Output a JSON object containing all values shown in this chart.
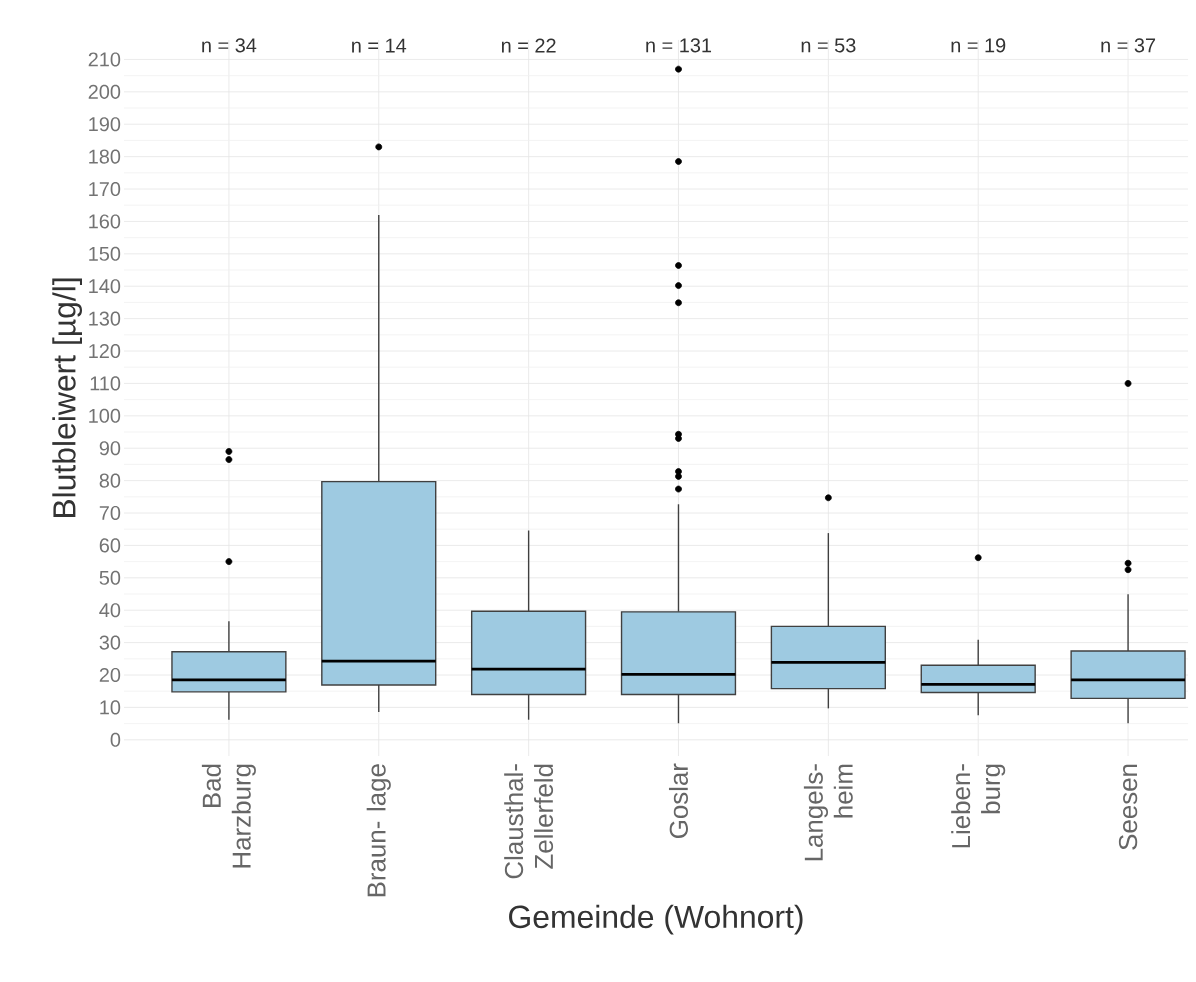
{
  "chart_data": {
    "type": "box",
    "xlabel": "Gemeinde (Wohnort)",
    "ylabel": "Blutbleiwert [µg/l]",
    "categories": [
      "Bad Harzburg",
      "Braun- lage",
      "Clausthal- Zellerfeld",
      "Goslar",
      "Langels- heim",
      "Lieben- burg",
      "Seesen"
    ],
    "color": "#9ecae1",
    "boxes": [
      {
        "low": 6.2,
        "q1": 14.8,
        "median": 18.5,
        "q3": 27.2,
        "high": 36.6,
        "outliers": [
          89,
          86.5,
          55
        ]
      },
      {
        "low": 8.6,
        "q1": 16.9,
        "median": 24.3,
        "q3": 79.7,
        "high": 162,
        "outliers": [
          183
        ]
      },
      {
        "low": 6.2,
        "q1": 14,
        "median": 21.8,
        "q3": 39.7,
        "high": 64.6
      },
      {
        "low": 5.1,
        "q1": 14,
        "median": 20.2,
        "q3": 39.5,
        "high": 72.7,
        "outliers": [
          207,
          178.5,
          146.4,
          140.2,
          134.9,
          94.3,
          93,
          82.8,
          81.3,
          77.4
        ]
      },
      {
        "low": 9.7,
        "q1": 15.8,
        "median": 23.9,
        "q3": 35,
        "high": 63.8,
        "outliers": [
          74.7
        ]
      },
      {
        "low": 7.6,
        "q1": 14.6,
        "median": 17.1,
        "q3": 23,
        "high": 30.9,
        "outliers": [
          56.2
        ]
      },
      {
        "low": 5.1,
        "q1": 12.8,
        "median": 18.5,
        "q3": 27.4,
        "high": 44.9,
        "outliers": [
          110,
          54.5,
          52.5
        ]
      }
    ],
    "annotations": [
      "n = 34",
      "n = 14",
      "n = 22",
      "n = 131",
      "n = 53",
      "n = 19",
      "n = 37"
    ],
    "ylim": [
      -5,
      216
    ],
    "yticks": [
      0,
      10,
      20,
      30,
      40,
      50,
      60,
      70,
      80,
      90,
      100,
      110,
      120,
      130,
      140,
      150,
      160,
      170,
      180,
      190,
      200,
      210
    ],
    "grid": true
  }
}
